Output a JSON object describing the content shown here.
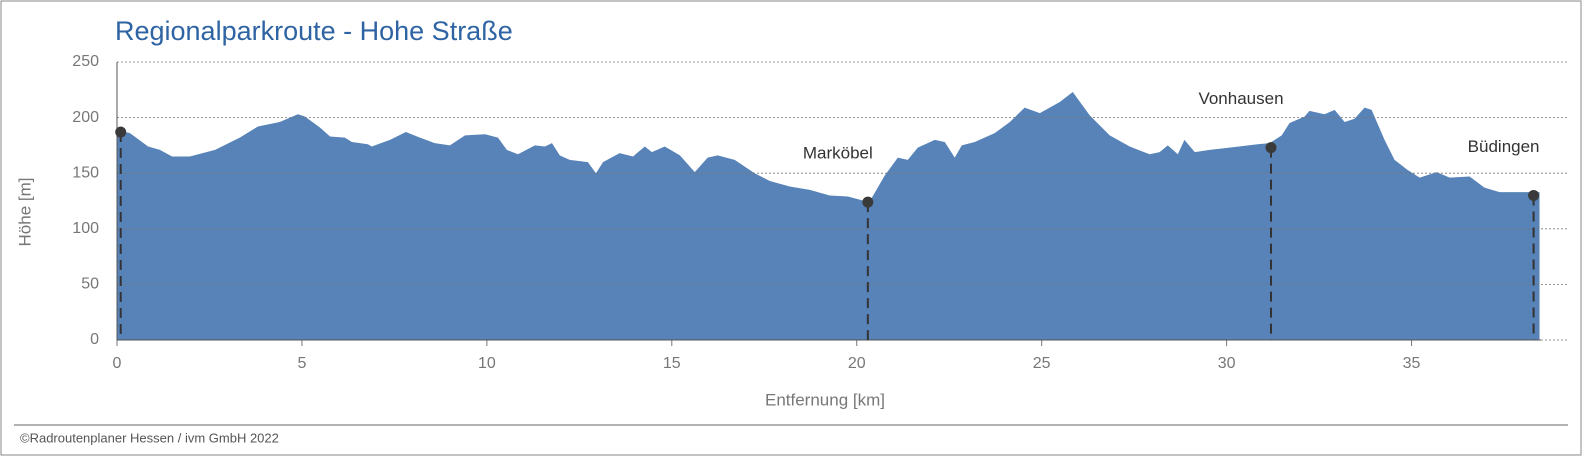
{
  "chart_data": {
    "type": "area",
    "title": "Regionalparkroute - Hohe Straße",
    "x_label": "Entfernung [km]",
    "y_label": "Höhe [m]",
    "footer": "©Radroutenplaner Hessen / ivm GmbH 2022",
    "color": "#5783b8",
    "grid": true,
    "xlim": [
      0,
      38.5
    ],
    "ylim": [
      0,
      250
    ],
    "xticks": [
      0,
      5,
      10,
      15,
      20,
      25,
      30,
      35
    ],
    "yticks": [
      0,
      50,
      100,
      150,
      200,
      250
    ],
    "x": [
      0,
      0.35,
      0.84,
      1.16,
      1.49,
      1.97,
      2.65,
      3.32,
      3.81,
      4.4,
      4.89,
      5.08,
      5.49,
      5.76,
      6.16,
      6.35,
      6.78,
      6.89,
      7.38,
      7.81,
      8.19,
      8.59,
      9.0,
      9.41,
      9.95,
      10.3,
      10.54,
      10.84,
      11.3,
      11.57,
      11.76,
      11.97,
      12.24,
      12.73,
      12.95,
      13.14,
      13.59,
      13.95,
      14.27,
      14.46,
      14.81,
      15.22,
      15.62,
      15.97,
      16.24,
      16.7,
      17.24,
      17.65,
      18.19,
      18.73,
      19.27,
      19.76,
      20.22,
      20.41,
      20.76,
      21.11,
      21.38,
      21.65,
      22.11,
      22.38,
      22.65,
      22.84,
      23.19,
      23.73,
      24.14,
      24.54,
      24.95,
      25.49,
      25.84,
      26.3,
      26.84,
      27.38,
      27.92,
      28.19,
      28.41,
      28.68,
      28.86,
      29.14,
      29.54,
      30.08,
      30.84,
      31.16,
      31.49,
      31.7,
      32.11,
      32.24,
      32.65,
      32.92,
      33.19,
      33.46,
      33.73,
      33.92,
      34.27,
      34.54,
      34.89,
      35.22,
      35.68,
      36.03,
      36.57,
      36.97,
      37.38,
      38.05,
      38.46
    ],
    "values": [
      189,
      186,
      174,
      171,
      165,
      165,
      171,
      182,
      192,
      196,
      203,
      201,
      191,
      183,
      182,
      178,
      176,
      174,
      180,
      187,
      182,
      177,
      175,
      184,
      185,
      182,
      171,
      167,
      175,
      174,
      177,
      166,
      162,
      160,
      150,
      160,
      168,
      165,
      174,
      169,
      174,
      166,
      151,
      164,
      166,
      162,
      150,
      143,
      138,
      135,
      130,
      129,
      125,
      128,
      148,
      164,
      162,
      173,
      180,
      178,
      164,
      175,
      178,
      186,
      196,
      209,
      204,
      214,
      223,
      202,
      184,
      174,
      167,
      169,
      175,
      167,
      180,
      169,
      171,
      173,
      176,
      177,
      184,
      195,
      201,
      206,
      203,
      207,
      196,
      199,
      209,
      207,
      180,
      162,
      153,
      146,
      151,
      146,
      147,
      137,
      133,
      133,
      133
    ],
    "markers": {
      "x": [
        0.1,
        20.3,
        31.2,
        38.3
      ],
      "y": [
        187,
        124,
        173,
        130
      ],
      "labels": [
        null,
        "Marköbel",
        "Vonhausen",
        "Büdingen"
      ]
    }
  }
}
